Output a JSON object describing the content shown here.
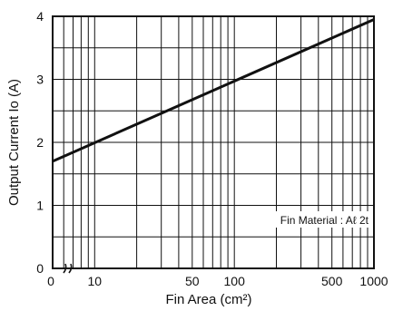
{
  "chart_data": {
    "type": "line",
    "xlabel": "Fin Area (cm²)",
    "ylabel": "Output Current Io (A)",
    "x_scale": "log",
    "xlim": [
      5,
      1000
    ],
    "ylim": [
      0,
      4
    ],
    "x_break_label": "0",
    "x_tick_labels": [
      {
        "value": 10,
        "label": "10"
      },
      {
        "value": 50,
        "label": "50"
      },
      {
        "value": 100,
        "label": "100"
      },
      {
        "value": 500,
        "label": "500"
      },
      {
        "value": 1000,
        "label": "1000"
      }
    ],
    "y_ticks": [
      0,
      1,
      2,
      3,
      4
    ],
    "x_gridlines": [
      5,
      6,
      7,
      8,
      9,
      10,
      20,
      30,
      40,
      50,
      60,
      70,
      80,
      90,
      100,
      200,
      300,
      400,
      500,
      600,
      700,
      800,
      900,
      1000
    ],
    "y_gridlines": [
      0,
      0.5,
      1,
      1.5,
      2,
      2.5,
      3,
      3.5,
      4
    ],
    "grid": true,
    "annotation": "Fin Material : Aℓ 2t",
    "series": [
      {
        "x": [
          5,
          1000
        ],
        "y": [
          1.7,
          3.95
        ]
      }
    ]
  }
}
